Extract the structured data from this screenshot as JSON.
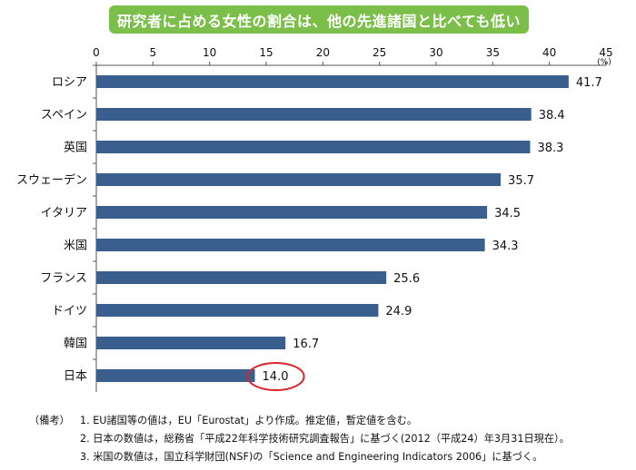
{
  "title": "研究者に占める女性の割合は、他の先進諸国と比べても低い",
  "colors": {
    "bar": "#3a5f8f",
    "title_bg": "#7bbf4a",
    "highlight": "#d9262c"
  },
  "chart_data": {
    "type": "bar",
    "orientation": "horizontal",
    "unit": "(%)",
    "categories": [
      "ロシア",
      "スペイン",
      "英国",
      "スウェーデン",
      "イタリア",
      "米国",
      "フランス",
      "ドイツ",
      "韓国",
      "日本"
    ],
    "values": [
      41.7,
      38.4,
      38.3,
      35.7,
      34.5,
      34.3,
      25.6,
      24.9,
      16.7,
      14.0
    ],
    "value_labels": [
      "41.7",
      "38.4",
      "38.3",
      "35.7",
      "34.5",
      "34.3",
      "25.6",
      "24.9",
      "16.7",
      "14.0"
    ],
    "xlim": [
      0,
      45
    ],
    "ticks": [
      "0",
      "5",
      "10",
      "15",
      "20",
      "25",
      "30",
      "35",
      "40",
      "45"
    ],
    "tick_values": [
      0,
      5,
      10,
      15,
      20,
      25,
      30,
      35,
      40,
      45
    ],
    "grid": false,
    "highlighted_category": "日本"
  },
  "notes": {
    "prefix": "（備考）",
    "items": [
      "1. EU諸国等の値は，EU「Eurostat」より作成。推定値，暫定値を含む。",
      "2. 日本の数値は，総務省「平成22年科学技術研究調査報告」に基づく(2012（平成24）年3月31日現在）。",
      "3. 米国の数値は，国立科学財団(NSF)の「Science and Engineering Indicators 2006」に基づく。"
    ]
  }
}
